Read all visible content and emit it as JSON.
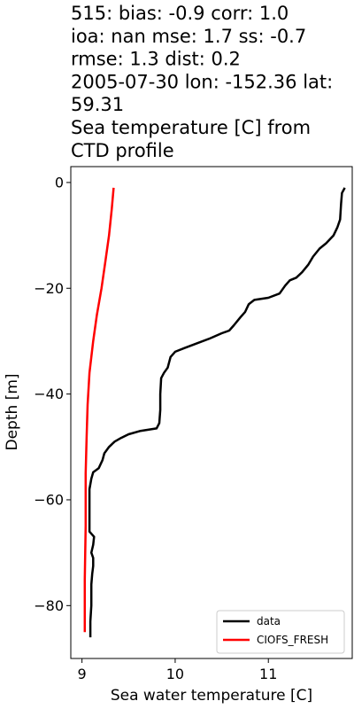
{
  "chart_data": {
    "type": "line",
    "title_lines": [
      "515: bias: -0.9  corr: 1.0",
      "ioa: nan  mse: 1.7  ss: -0.7",
      "rmse: 1.3  dist: 0.2",
      "2005-07-30 lon: -152.36 lat:",
      "59.31",
      "Sea temperature [C] from",
      "CTD profile"
    ],
    "xlabel": "Sea water temperature [C]",
    "ylabel": "Depth [m]",
    "xlim": [
      8.88,
      11.9
    ],
    "ylim": [
      -90,
      3
    ],
    "xticks": [
      9,
      10,
      11
    ],
    "xtick_labels": [
      "9",
      "10",
      "11"
    ],
    "yticks": [
      0,
      -20,
      -40,
      -60,
      -80
    ],
    "ytick_labels": [
      "0",
      "−20",
      "−40",
      "−60",
      "−80"
    ],
    "legend_position": "lower-right",
    "series": [
      {
        "name": "data",
        "color": "#000000",
        "points": [
          [
            11.82,
            -1
          ],
          [
            11.79,
            -2
          ],
          [
            11.78,
            -4
          ],
          [
            11.77,
            -7
          ],
          [
            11.74,
            -8.5
          ],
          [
            11.7,
            -10
          ],
          [
            11.62,
            -11.5
          ],
          [
            11.55,
            -12.5
          ],
          [
            11.48,
            -14
          ],
          [
            11.43,
            -15.5
          ],
          [
            11.36,
            -17
          ],
          [
            11.3,
            -18
          ],
          [
            11.23,
            -18.5
          ],
          [
            11.18,
            -19.5
          ],
          [
            11.12,
            -21
          ],
          [
            11.0,
            -21.8
          ],
          [
            10.85,
            -22.2
          ],
          [
            10.79,
            -23
          ],
          [
            10.75,
            -24.5
          ],
          [
            10.7,
            -25.5
          ],
          [
            10.63,
            -27
          ],
          [
            10.58,
            -28
          ],
          [
            10.5,
            -28.5
          ],
          [
            10.37,
            -29.5
          ],
          [
            10.22,
            -30.5
          ],
          [
            10.1,
            -31.3
          ],
          [
            10.0,
            -32
          ],
          [
            9.95,
            -33
          ],
          [
            9.92,
            -35
          ],
          [
            9.88,
            -36
          ],
          [
            9.85,
            -37
          ],
          [
            9.84,
            -40
          ],
          [
            9.84,
            -43
          ],
          [
            9.83,
            -45.5
          ],
          [
            9.8,
            -46.5
          ],
          [
            9.62,
            -47
          ],
          [
            9.5,
            -47.6
          ],
          [
            9.42,
            -48.3
          ],
          [
            9.35,
            -49
          ],
          [
            9.29,
            -50
          ],
          [
            9.24,
            -51.2
          ],
          [
            9.22,
            -52.5
          ],
          [
            9.18,
            -54
          ],
          [
            9.12,
            -54.8
          ],
          [
            9.1,
            -56
          ],
          [
            9.08,
            -58
          ],
          [
            9.08,
            -61
          ],
          [
            9.08,
            -64
          ],
          [
            9.08,
            -66
          ],
          [
            9.13,
            -67
          ],
          [
            9.12,
            -68.5
          ],
          [
            9.1,
            -70
          ],
          [
            9.12,
            -71
          ],
          [
            9.12,
            -72.5
          ],
          [
            9.11,
            -74
          ],
          [
            9.1,
            -76
          ],
          [
            9.1,
            -80
          ],
          [
            9.09,
            -83
          ],
          [
            9.09,
            -86
          ]
        ]
      },
      {
        "name": "CIOFS_FRESH",
        "color": "#ff0000",
        "points": [
          [
            9.34,
            -1
          ],
          [
            9.32,
            -5
          ],
          [
            9.29,
            -10
          ],
          [
            9.25,
            -15
          ],
          [
            9.21,
            -20
          ],
          [
            9.16,
            -25
          ],
          [
            9.12,
            -30
          ],
          [
            9.08,
            -36
          ],
          [
            9.06,
            -42
          ],
          [
            9.05,
            -48
          ],
          [
            9.04,
            -55
          ],
          [
            9.04,
            -65
          ],
          [
            9.03,
            -75
          ],
          [
            9.03,
            -85
          ]
        ]
      }
    ]
  }
}
